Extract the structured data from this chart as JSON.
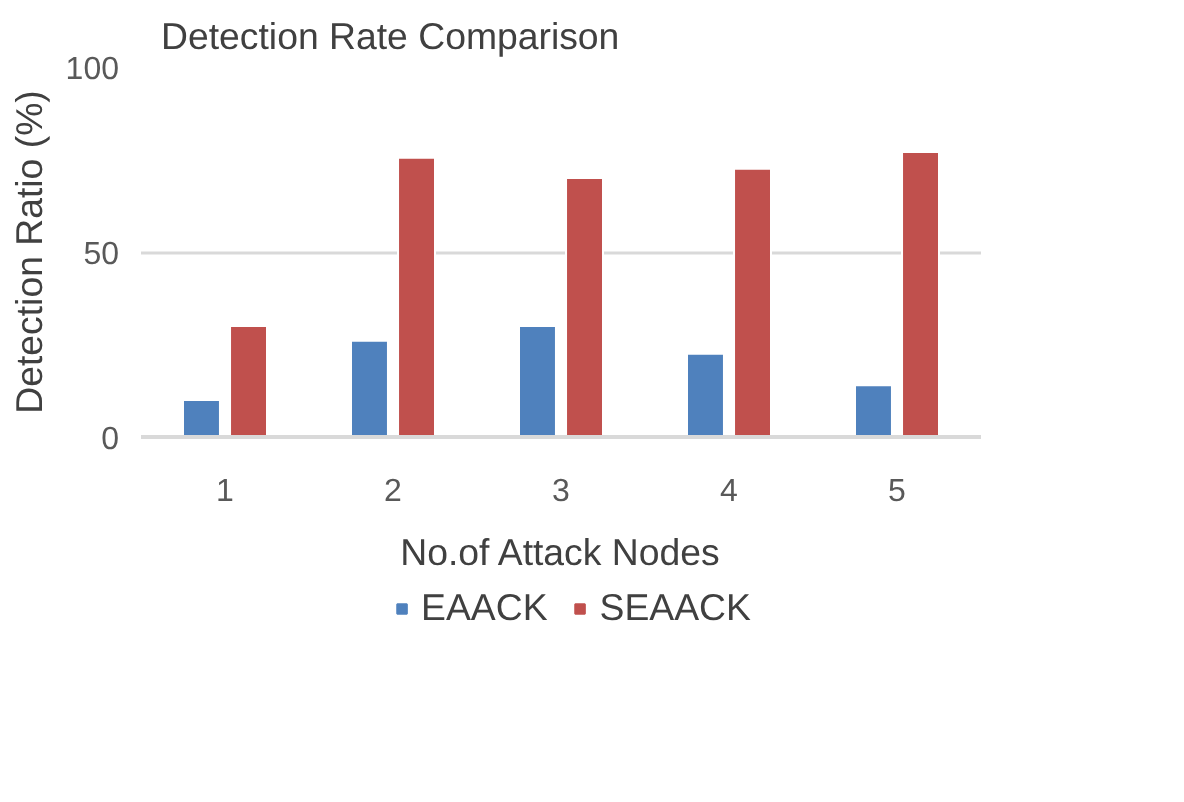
{
  "chart_data": {
    "type": "bar",
    "title": "Detection Rate Comparison",
    "xlabel": "No.of Attack Nodes",
    "ylabel": "Detection Ratio (%)",
    "categories": [
      "1",
      "2",
      "3",
      "4",
      "5"
    ],
    "series": [
      {
        "name": "EAACK",
        "color": "#4f81bd",
        "values": [
          10,
          26,
          30,
          22.5,
          14
        ]
      },
      {
        "name": "SEAACK",
        "color": "#c0504d",
        "values": [
          30,
          75.5,
          70,
          72.5,
          77
        ]
      }
    ],
    "ylim": [
      0,
      100
    ],
    "yticks": [
      0,
      50,
      100
    ],
    "grid": "y",
    "legend": "bottom"
  }
}
